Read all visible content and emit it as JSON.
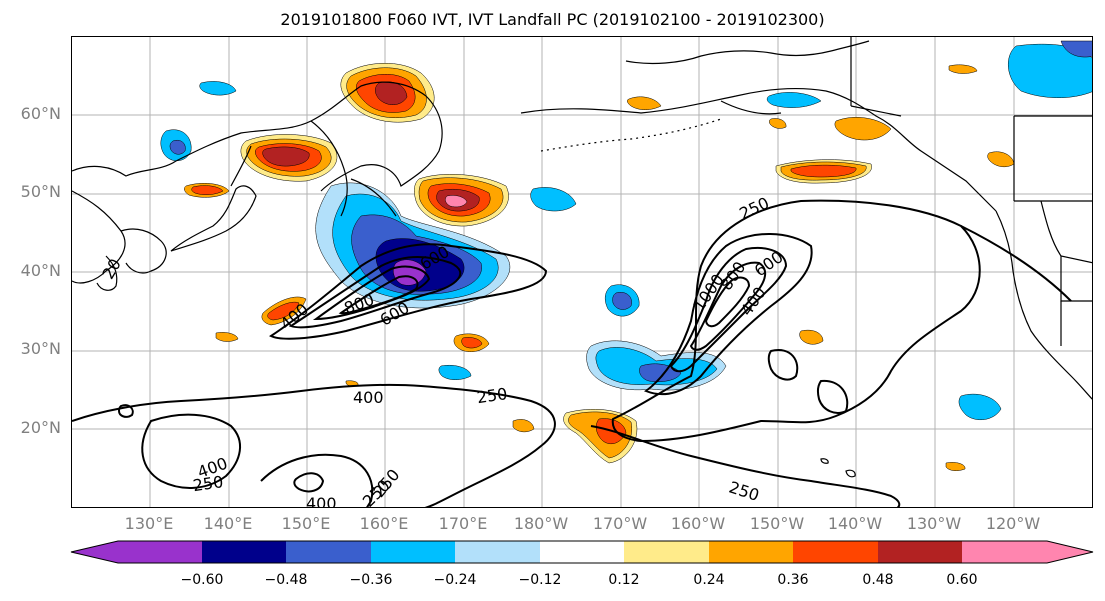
{
  "title": "2019101800 F060 IVT, IVT Landfall PC (2019102100 - 2019102300)",
  "lat_labels": [
    "60°N",
    "50°N",
    "40°N",
    "30°N",
    "20°N"
  ],
  "lon_labels": [
    "130°E",
    "140°E",
    "150°E",
    "160°E",
    "170°E",
    "180°W",
    "170°W",
    "160°W",
    "150°W",
    "140°W",
    "130°W",
    "120°W"
  ],
  "colorbar": {
    "colors": [
      "#9932CC",
      "#00008B",
      "#3A5FCD",
      "#00BFFF",
      "#B2E0FA",
      "#FFFFFF",
      "#FFEB8A",
      "#FFA500",
      "#FF4500",
      "#B22222",
      "#FF85AF"
    ],
    "ticks": [
      "−0.60",
      "−0.48",
      "−0.36",
      "−0.24",
      "−0.12",
      "0.12",
      "0.24",
      "0.36",
      "0.48",
      "0.60"
    ]
  },
  "contour_labels": [
    "250",
    "250",
    "250",
    "250",
    "250",
    "400",
    "400",
    "400",
    "400",
    "400",
    "600",
    "600",
    "600",
    "800",
    "800",
    "1000",
    "20",
    "250"
  ]
}
